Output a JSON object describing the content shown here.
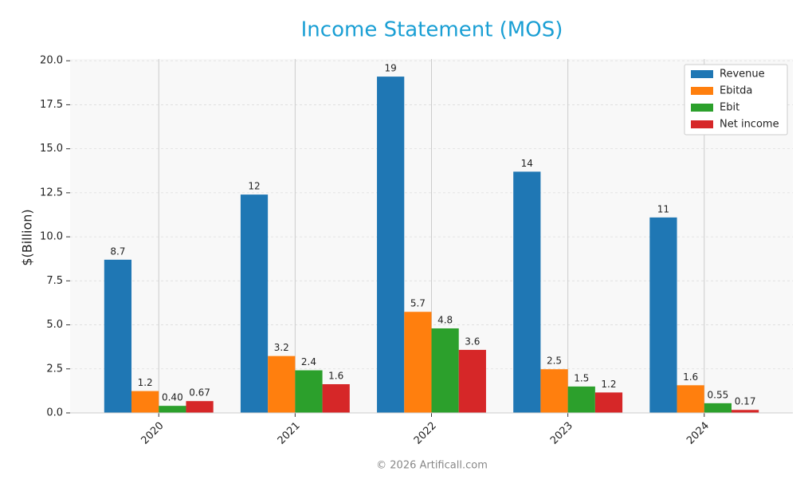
{
  "chart_data": {
    "type": "bar",
    "title": "Income Statement (MOS)",
    "y_label": "$(Billion)",
    "footer": "© 2026 Artificall.com",
    "categories": [
      "2020",
      "2021",
      "2022",
      "2023",
      "2024"
    ],
    "series": [
      {
        "name": "Revenue",
        "color": "#1f77b4",
        "values": [
          8.7,
          12.4,
          19.1,
          13.7,
          11.1
        ],
        "value_labels": [
          "8.7",
          "12",
          "19",
          "14",
          "11"
        ]
      },
      {
        "name": "Ebitda",
        "color": "#ff7f0e",
        "values": [
          1.24,
          3.23,
          5.74,
          2.48,
          1.57
        ],
        "value_labels": [
          "1.2",
          "3.2",
          "5.7",
          "2.5",
          "1.6"
        ]
      },
      {
        "name": "Ebit",
        "color": "#2ca02c",
        "values": [
          0.4,
          2.42,
          4.8,
          1.5,
          0.55
        ],
        "value_labels": [
          "0.40",
          "2.4",
          "4.8",
          "1.5",
          "0.55"
        ]
      },
      {
        "name": "Net income",
        "color": "#d62728",
        "values": [
          0.67,
          1.63,
          3.58,
          1.16,
          0.17
        ],
        "value_labels": [
          "0.67",
          "1.6",
          "3.6",
          "1.2",
          "0.17"
        ]
      }
    ],
    "ylim": [
      0,
      20.1
    ],
    "yticks": [
      {
        "value": 0,
        "label": "0.0"
      },
      2.5,
      {
        "value": 5,
        "label": "5.0"
      },
      7.5,
      {
        "value": 10,
        "label": "10.0"
      },
      12.5,
      {
        "value": 15,
        "label": "15.0"
      },
      17.5,
      {
        "value": 20,
        "label": "20.0"
      }
    ],
    "grid": true,
    "legend": "upper right"
  }
}
